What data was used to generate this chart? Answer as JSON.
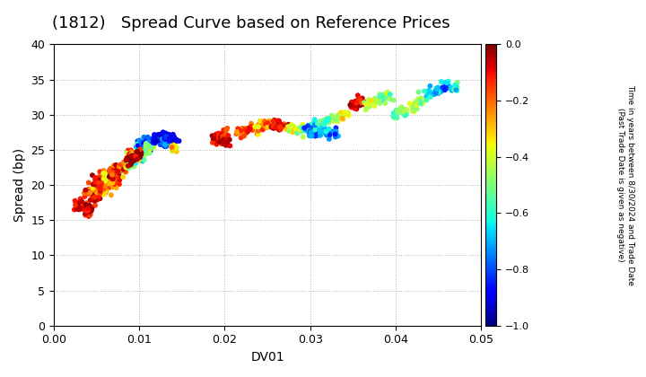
{
  "title": "(1812)   Spread Curve based on Reference Prices",
  "xlabel": "DV01",
  "ylabel": "Spread (bp)",
  "xlim": [
    0.0,
    0.05
  ],
  "ylim": [
    0,
    40
  ],
  "xticks": [
    0.0,
    0.01,
    0.02,
    0.03,
    0.04,
    0.05
  ],
  "yticks": [
    0,
    5,
    10,
    15,
    20,
    25,
    30,
    35,
    40
  ],
  "colorbar_label_line1": "Time in years between 8/30/2024 and Trade Date",
  "colorbar_label_line2": "(Past Trade Date is given as negative)",
  "cmap": "jet",
  "vmin": -1.0,
  "vmax": 0.0,
  "colorbar_ticks": [
    0.0,
    -0.2,
    -0.4,
    -0.6,
    -0.8,
    -1.0
  ],
  "background_color": "#ffffff",
  "grid_color": "#b0b0b0",
  "marker_size": 18,
  "title_fontsize": 13,
  "axis_fontsize": 10,
  "tick_fontsize": 9,
  "cbar_fontsize": 8
}
